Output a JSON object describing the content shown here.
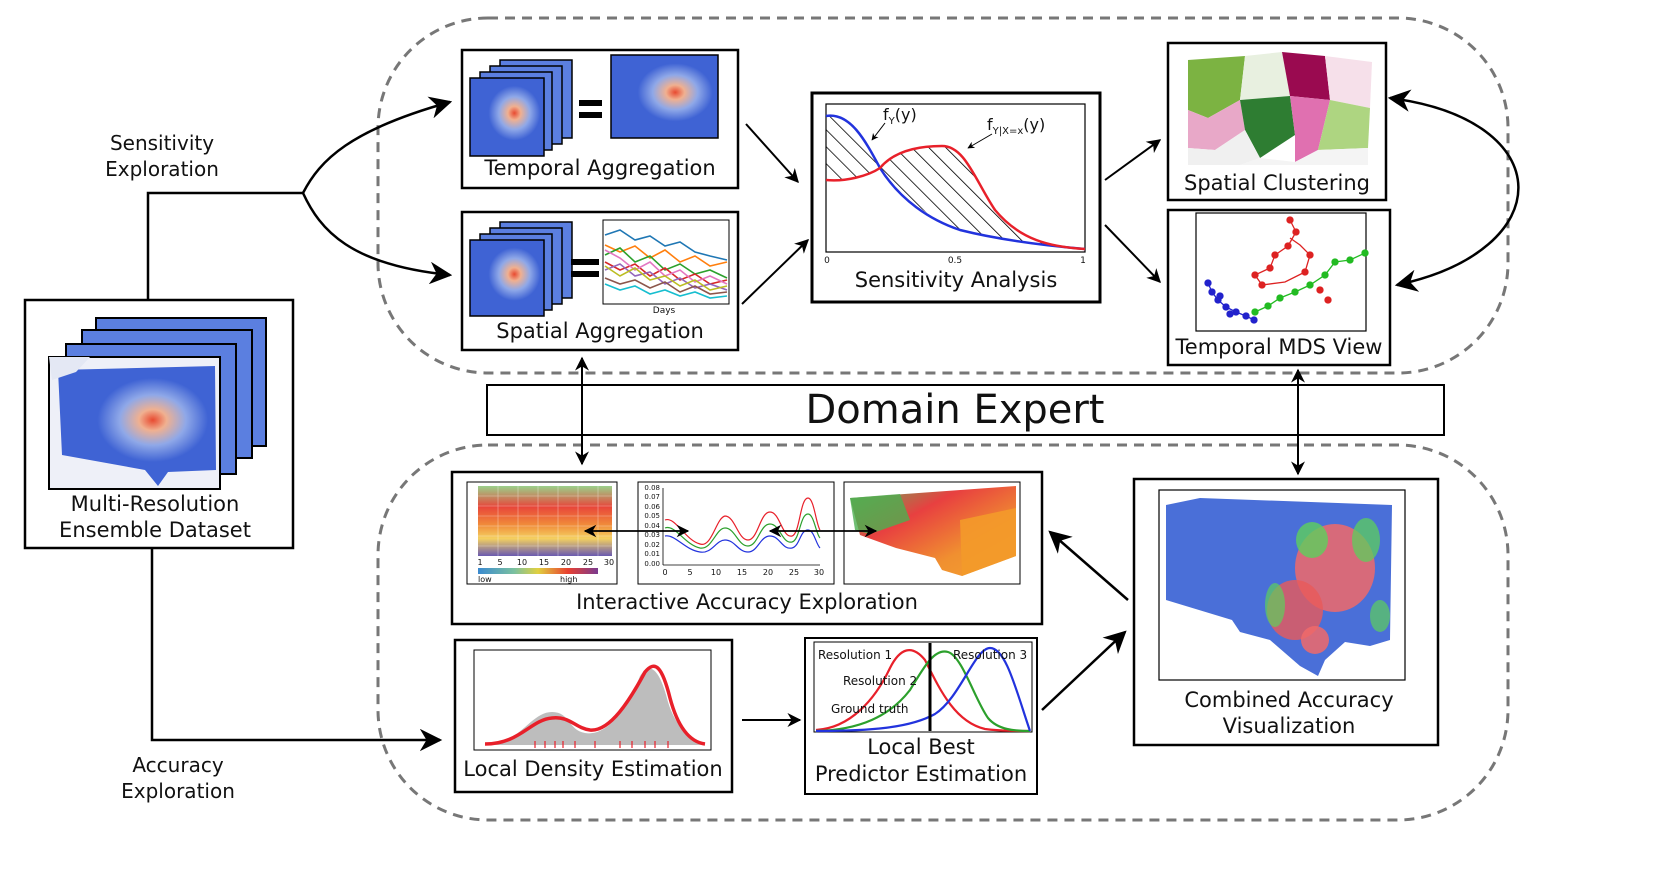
{
  "labels": {
    "sensitivity_exploration": [
      "Sensitivity",
      "Exploration"
    ],
    "accuracy_exploration": [
      "Accuracy",
      "Exploration"
    ],
    "domain_expert": "Domain Expert",
    "dataset": [
      "Multi-Resolution",
      "Ensemble Dataset"
    ],
    "temporal_aggregation": "Temporal Aggregation",
    "spatial_aggregation": "Spatial Aggregation",
    "sensitivity_analysis": "Sensitivity Analysis",
    "spatial_clustering": "Spatial Clustering",
    "temporal_mds": "Temporal MDS View",
    "interactive_accuracy": "Interactive Accuracy Exploration",
    "local_density": "Local Density Estimation",
    "local_best": [
      "Local Best",
      "Predictor Estimation"
    ],
    "combined_accuracy": [
      "Combined Accuracy",
      "Visualization"
    ]
  },
  "sensitivity_plot": {
    "fy_label": "f",
    "fy_sub": "Y",
    "fy_arg": "(y)",
    "fyx_label": "f",
    "fyx_sub": "Y|X=x",
    "fyx_arg": "(y)",
    "x_ticks": [
      "0",
      "0.5",
      "1"
    ]
  },
  "spatial_agg_plot": {
    "xlabel": "Days"
  },
  "accuracy_heatmap": {
    "x_ticks": [
      "1",
      "5",
      "10",
      "15",
      "20",
      "25",
      "30"
    ],
    "legend_low": "low",
    "legend_high": "high"
  },
  "accuracy_line": {
    "y_ticks": [
      "0.08",
      "0.07",
      "0.06",
      "0.05",
      "0.04",
      "0.03",
      "0.02",
      "0.01",
      "0.00"
    ],
    "x_ticks": [
      "0",
      "5",
      "10",
      "15",
      "20",
      "25",
      "30"
    ]
  },
  "best_predictor": {
    "res1": "Resolution 1",
    "res2": "Resolution 2",
    "res3": "Resolution 3",
    "ground": "Ground truth"
  },
  "colors": {
    "red": "#e8202a",
    "blue": "#2233dd",
    "green": "#3aa53a",
    "map_blue": "#4a6fd8",
    "dashed": "#777777"
  }
}
